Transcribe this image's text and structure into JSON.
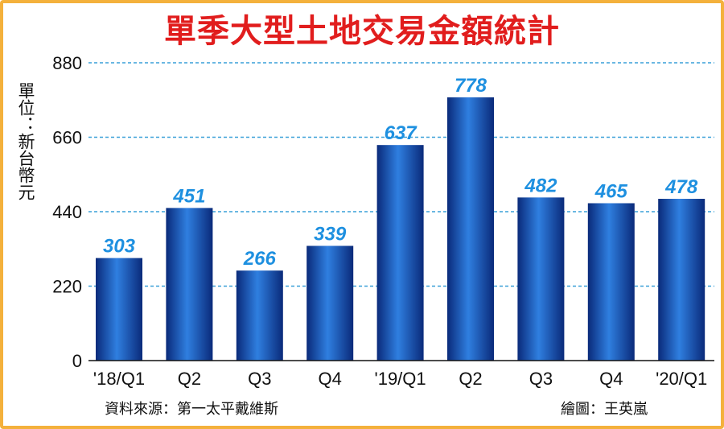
{
  "title": "單季大型土地交易金額統計",
  "ylabel": "單位：新台幣元",
  "source": "資料來源：第一太平戴維斯",
  "credit": "繪圖：王英嵐",
  "colors": {
    "title": "#e11d1d",
    "border": "#f4b13c",
    "bar_dark": "#0a2a7a",
    "bar_light": "#2f7fe0",
    "value_label": "#1e90e0",
    "grid": "#3aa0d8"
  },
  "chart_data": {
    "type": "bar",
    "title": "單季大型土地交易金額統計",
    "ylabel": "單位：新台幣元",
    "xlabel": "",
    "categories": [
      "'18/Q1",
      "Q2",
      "Q3",
      "Q4",
      "'19/Q1",
      "Q2",
      "Q3",
      "Q4",
      "'20/Q1"
    ],
    "values": [
      303,
      451,
      266,
      339,
      637,
      778,
      482,
      465,
      478
    ],
    "value_labels": [
      "303",
      "451",
      "266",
      "339",
      "637",
      "778",
      "482",
      "465",
      "478"
    ],
    "ylim": [
      0,
      880
    ],
    "yticks": [
      0,
      220,
      440,
      660,
      880
    ],
    "ytick_labels": [
      "0",
      "220",
      "440",
      "660",
      "880"
    ],
    "grid": "horizontal dashed",
    "legend": "none"
  }
}
